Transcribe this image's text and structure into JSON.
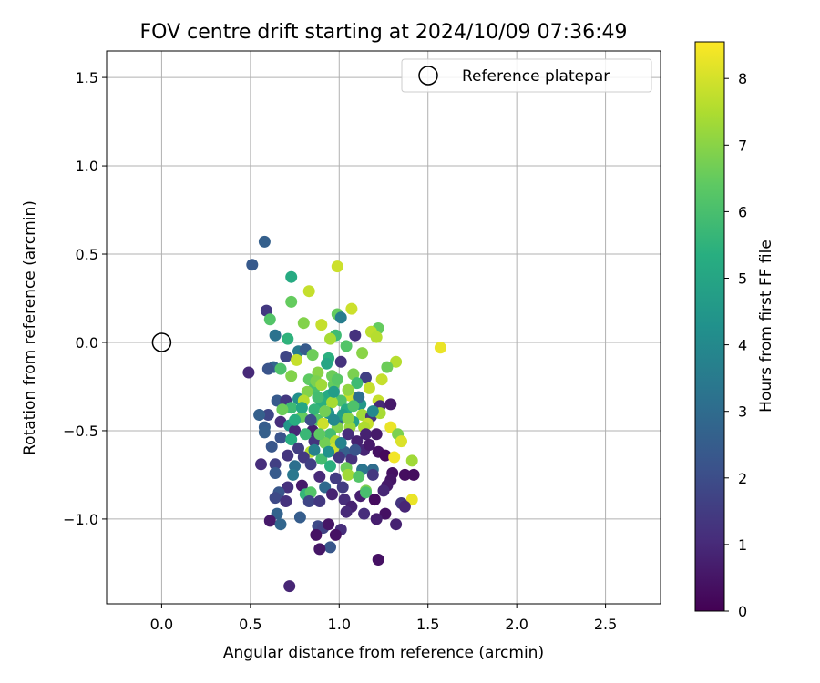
{
  "chart_data": {
    "type": "scatter",
    "title": "FOV centre drift starting at 2024/10/09 07:36:49",
    "xlabel": "Angular distance from reference (arcmin)",
    "ylabel": "Rotation from reference (arcmin)",
    "xlim": [
      -0.31,
      2.81
    ],
    "ylim": [
      -1.48,
      1.65
    ],
    "xticks": [
      0.0,
      0.5,
      1.0,
      1.5,
      2.0,
      2.5
    ],
    "xtick_labels": [
      "0.0",
      "0.5",
      "1.0",
      "1.5",
      "2.0",
      "2.5"
    ],
    "yticks": [
      -1.0,
      -0.5,
      0.0,
      0.5,
      1.0,
      1.5
    ],
    "ytick_labels": [
      "−1.0",
      "−0.5",
      "0.0",
      "0.5",
      "1.0",
      "1.5"
    ],
    "grid": true,
    "legend": {
      "placement": "upper right",
      "entries": [
        {
          "label": "Reference platepar",
          "marker": "open-circle"
        }
      ]
    },
    "reference_point": {
      "x": 0.0,
      "y": 0.0
    },
    "colorbar": {
      "label": "Hours from first FF file",
      "colormap": "viridis",
      "range": [
        0,
        8.55
      ],
      "ticks": [
        0,
        1,
        2,
        3,
        4,
        5,
        6,
        7,
        8
      ],
      "tick_labels": [
        "0",
        "1",
        "2",
        "3",
        "4",
        "5",
        "6",
        "7",
        "8"
      ]
    },
    "points": [
      [
        0.58,
        0.57,
        2.6
      ],
      [
        0.51,
        0.44,
        2.4
      ],
      [
        0.73,
        0.37,
        5.2
      ],
      [
        0.99,
        0.43,
        7.9
      ],
      [
        0.59,
        0.18,
        1.4
      ],
      [
        0.73,
        0.23,
        6.5
      ],
      [
        0.83,
        0.29,
        7.8
      ],
      [
        0.61,
        0.13,
        6.2
      ],
      [
        1.07,
        0.19,
        7.9
      ],
      [
        0.99,
        0.16,
        6.5
      ],
      [
        1.01,
        0.14,
        3.6
      ],
      [
        0.8,
        0.11,
        6.9
      ],
      [
        0.9,
        0.1,
        7.8
      ],
      [
        0.71,
        0.02,
        5.5
      ],
      [
        0.64,
        0.04,
        3.2
      ],
      [
        0.98,
        0.04,
        5.8
      ],
      [
        1.09,
        0.04,
        1.2
      ],
      [
        1.22,
        0.08,
        6.5
      ],
      [
        1.18,
        0.06,
        7.7
      ],
      [
        1.21,
        0.03,
        7.6
      ],
      [
        0.95,
        0.02,
        7.4
      ],
      [
        1.57,
        -0.03,
        8.3
      ],
      [
        1.04,
        -0.02,
        6.2
      ],
      [
        0.49,
        -0.17,
        1.0
      ],
      [
        1.13,
        -0.06,
        7.0
      ],
      [
        0.7,
        -0.08,
        1.8
      ],
      [
        0.77,
        -0.05,
        3.5
      ],
      [
        0.81,
        -0.04,
        2.4
      ],
      [
        0.85,
        -0.07,
        6.6
      ],
      [
        0.94,
        -0.09,
        5.4
      ],
      [
        1.01,
        -0.11,
        1.2
      ],
      [
        0.76,
        -0.1,
        7.8
      ],
      [
        0.63,
        -0.14,
        2.8
      ],
      [
        0.6,
        -0.15,
        2.2
      ],
      [
        1.32,
        -0.11,
        7.6
      ],
      [
        0.67,
        -0.15,
        6.1
      ],
      [
        0.73,
        -0.19,
        6.9
      ],
      [
        0.88,
        -0.17,
        7.0
      ],
      [
        0.83,
        -0.21,
        6.4
      ],
      [
        1.27,
        -0.14,
        6.6
      ],
      [
        1.08,
        -0.18,
        6.8
      ],
      [
        1.15,
        -0.2,
        1.6
      ],
      [
        1.24,
        -0.21,
        7.8
      ],
      [
        0.97,
        -0.24,
        6.5
      ],
      [
        0.86,
        -0.26,
        6.0
      ],
      [
        0.82,
        -0.28,
        6.9
      ],
      [
        0.94,
        -0.3,
        5.2
      ],
      [
        1.06,
        -0.3,
        7.9
      ],
      [
        1.17,
        -0.26,
        7.8
      ],
      [
        1.01,
        -0.33,
        6.1
      ],
      [
        0.65,
        -0.33,
        2.4
      ],
      [
        0.7,
        -0.33,
        1.4
      ],
      [
        0.77,
        -0.32,
        4.2
      ],
      [
        0.9,
        -0.34,
        5.4
      ],
      [
        0.96,
        -0.34,
        7.4
      ],
      [
        1.12,
        -0.35,
        4.5
      ],
      [
        1.22,
        -0.33,
        7.8
      ],
      [
        1.23,
        -0.36,
        1.0
      ],
      [
        1.29,
        -0.35,
        0.6
      ],
      [
        0.73,
        -0.37,
        5.8
      ],
      [
        0.68,
        -0.38,
        6.6
      ],
      [
        0.86,
        -0.38,
        5.6
      ],
      [
        0.94,
        -0.4,
        4.4
      ],
      [
        1.04,
        -0.38,
        5.2
      ],
      [
        1.13,
        -0.41,
        7.3
      ],
      [
        1.18,
        -0.42,
        1.3
      ],
      [
        1.23,
        -0.4,
        7.4
      ],
      [
        0.6,
        -0.41,
        1.8
      ],
      [
        0.55,
        -0.41,
        2.6
      ],
      [
        0.79,
        -0.42,
        6.5
      ],
      [
        0.88,
        -0.44,
        6.2
      ],
      [
        1.0,
        -0.44,
        3.0
      ],
      [
        1.08,
        -0.45,
        4.9
      ],
      [
        1.16,
        -0.46,
        7.8
      ],
      [
        0.67,
        -0.45,
        1.1
      ],
      [
        0.72,
        -0.47,
        4.5
      ],
      [
        0.91,
        -0.46,
        7.9
      ],
      [
        0.99,
        -0.48,
        6.9
      ],
      [
        1.06,
        -0.48,
        7.2
      ],
      [
        1.14,
        -0.48,
        7.5
      ],
      [
        1.29,
        -0.48,
        8.3
      ],
      [
        0.58,
        -0.48,
        2.5
      ],
      [
        0.58,
        -0.51,
        2.6
      ],
      [
        0.75,
        -0.5,
        0.9
      ],
      [
        0.85,
        -0.5,
        0.7
      ],
      [
        0.95,
        -0.52,
        5.9
      ],
      [
        1.05,
        -0.52,
        1.1
      ],
      [
        1.15,
        -0.52,
        0.8
      ],
      [
        1.21,
        -0.52,
        0.6
      ],
      [
        1.33,
        -0.52,
        6.8
      ],
      [
        0.67,
        -0.54,
        2.2
      ],
      [
        0.73,
        -0.55,
        5.3
      ],
      [
        0.86,
        -0.56,
        1.3
      ],
      [
        0.92,
        -0.57,
        6.7
      ],
      [
        0.98,
        -0.56,
        7.6
      ],
      [
        1.1,
        -0.56,
        0.8
      ],
      [
        1.35,
        -0.56,
        8.1
      ],
      [
        0.62,
        -0.59,
        2.3
      ],
      [
        0.77,
        -0.6,
        1.5
      ],
      [
        0.84,
        -0.62,
        7.6
      ],
      [
        0.98,
        -0.6,
        7.9
      ],
      [
        1.03,
        -0.62,
        2.6
      ],
      [
        1.14,
        -0.61,
        0.9
      ],
      [
        1.22,
        -0.62,
        0.4
      ],
      [
        0.71,
        -0.64,
        1.3
      ],
      [
        0.8,
        -0.65,
        1.4
      ],
      [
        0.9,
        -0.66,
        5.9
      ],
      [
        1.0,
        -0.65,
        1.4
      ],
      [
        1.07,
        -0.66,
        1.2
      ],
      [
        1.26,
        -0.64,
        0.2
      ],
      [
        1.31,
        -0.65,
        8.4
      ],
      [
        1.41,
        -0.67,
        7.3
      ],
      [
        0.56,
        -0.69,
        1.1
      ],
      [
        0.64,
        -0.69,
        1.6
      ],
      [
        0.75,
        -0.7,
        3.1
      ],
      [
        0.84,
        -0.69,
        1.6
      ],
      [
        0.95,
        -0.7,
        5.4
      ],
      [
        1.04,
        -0.71,
        6.6
      ],
      [
        1.13,
        -0.72,
        3.3
      ],
      [
        1.19,
        -0.72,
        3.0
      ],
      [
        1.3,
        -0.74,
        0.4
      ],
      [
        1.37,
        -0.75,
        0.3
      ],
      [
        1.42,
        -0.75,
        0.3
      ],
      [
        0.64,
        -0.74,
        2.4
      ],
      [
        0.74,
        -0.75,
        3.4
      ],
      [
        0.89,
        -0.76,
        1.0
      ],
      [
        0.98,
        -0.77,
        1.5
      ],
      [
        1.05,
        -0.75,
        7.3
      ],
      [
        1.11,
        -0.76,
        6.2
      ],
      [
        1.19,
        -0.75,
        1.4
      ],
      [
        0.71,
        -0.82,
        1.2
      ],
      [
        0.79,
        -0.81,
        0.6
      ],
      [
        0.92,
        -0.82,
        2.9
      ],
      [
        1.02,
        -0.82,
        1.5
      ],
      [
        1.15,
        -0.84,
        6.8
      ],
      [
        1.29,
        -0.78,
        0.5
      ],
      [
        1.27,
        -0.81,
        0.6
      ],
      [
        1.25,
        -0.84,
        0.9
      ],
      [
        0.66,
        -0.85,
        2.3
      ],
      [
        0.81,
        -0.86,
        5.6
      ],
      [
        0.84,
        -0.85,
        6.2
      ],
      [
        0.96,
        -0.86,
        0.8
      ],
      [
        1.03,
        -0.89,
        1.1
      ],
      [
        1.12,
        -0.87,
        0.7
      ],
      [
        1.15,
        -0.85,
        6.0
      ],
      [
        1.2,
        -0.89,
        0.3
      ],
      [
        1.41,
        -0.89,
        8.3
      ],
      [
        0.64,
        -0.88,
        1.9
      ],
      [
        0.7,
        -0.9,
        1.2
      ],
      [
        0.83,
        -0.9,
        1.8
      ],
      [
        0.89,
        -0.9,
        1.4
      ],
      [
        1.07,
        -0.93,
        0.8
      ],
      [
        1.35,
        -0.91,
        1.3
      ],
      [
        1.37,
        -0.93,
        0.9
      ],
      [
        0.65,
        -0.97,
        2.7
      ],
      [
        0.61,
        -1.01,
        0.6
      ],
      [
        0.67,
        -1.03,
        2.8
      ],
      [
        0.78,
        -0.99,
        2.5
      ],
      [
        1.04,
        -0.96,
        1.0
      ],
      [
        1.14,
        -0.97,
        1.1
      ],
      [
        1.26,
        -0.97,
        0.4
      ],
      [
        1.21,
        -1.0,
        0.7
      ],
      [
        0.88,
        -1.04,
        1.9
      ],
      [
        0.91,
        -1.05,
        1.7
      ],
      [
        1.01,
        -1.06,
        1.1
      ],
      [
        0.94,
        -1.03,
        0.5
      ],
      [
        1.32,
        -1.03,
        0.8
      ],
      [
        0.87,
        -1.09,
        0.4
      ],
      [
        0.98,
        -1.09,
        0.4
      ],
      [
        0.95,
        -1.16,
        2.3
      ],
      [
        0.89,
        -1.17,
        0.5
      ],
      [
        1.22,
        -1.23,
        0.4
      ],
      [
        0.72,
        -1.38,
        0.9
      ],
      [
        0.8,
        -0.33,
        7.6
      ],
      [
        0.87,
        -0.22,
        6.8
      ],
      [
        0.93,
        -0.12,
        5.0
      ],
      [
        0.96,
        -0.19,
        6.6
      ],
      [
        1.1,
        -0.23,
        5.8
      ],
      [
        0.84,
        -0.44,
        2.0
      ],
      [
        0.94,
        -0.62,
        4.3
      ],
      [
        1.02,
        -0.41,
        4.8
      ],
      [
        1.05,
        -0.27,
        7.1
      ],
      [
        1.11,
        -0.31,
        3.1
      ],
      [
        0.79,
        -0.37,
        5.0
      ],
      [
        0.88,
        -0.31,
        5.9
      ],
      [
        0.97,
        -0.28,
        4.7
      ],
      [
        0.9,
        -0.24,
        7.3
      ],
      [
        0.81,
        -0.52,
        5.7
      ],
      [
        1.08,
        -0.36,
        6.1
      ],
      [
        1.19,
        -0.39,
        4.0
      ],
      [
        0.92,
        -0.39,
        6.7
      ],
      [
        0.99,
        -0.21,
        6.3
      ],
      [
        0.75,
        -0.44,
        5.3
      ],
      [
        1.01,
        -0.57,
        3.8
      ],
      [
        1.09,
        -0.61,
        2.2
      ],
      [
        0.86,
        -0.61,
        3.7
      ],
      [
        1.17,
        -0.58,
        0.6
      ],
      [
        0.89,
        -0.52,
        6.4
      ],
      [
        0.97,
        -0.44,
        4.0
      ],
      [
        1.05,
        -0.43,
        7.0
      ]
    ]
  }
}
